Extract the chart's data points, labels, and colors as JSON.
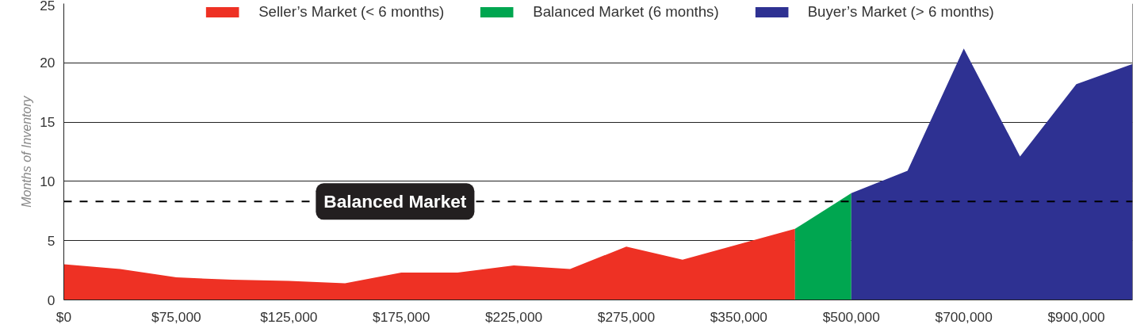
{
  "chart_data": {
    "type": "area",
    "ylabel": "Months of Inventory",
    "categories": [
      "$0",
      null,
      "$75,000",
      null,
      "$125,000",
      null,
      "$175,000",
      null,
      "$225,000",
      null,
      "$275,000",
      null,
      "$350,000",
      null,
      "$500,000",
      null,
      "$700,000",
      null,
      "$900,000",
      null
    ],
    "series": [
      {
        "name": "Seller’s Market (< 6 months)",
        "color": "#ee3124",
        "values": [
          3.0,
          2.6,
          1.9,
          1.7,
          1.6,
          1.4,
          2.3,
          2.3,
          2.9,
          2.6,
          4.5,
          3.4,
          4.7,
          6.0,
          null,
          null,
          null,
          null,
          null,
          null
        ]
      },
      {
        "name": "Balanced Market (6 months)",
        "color": "#00a650",
        "values": [
          null,
          null,
          null,
          null,
          null,
          null,
          null,
          null,
          null,
          null,
          null,
          null,
          null,
          6.0,
          9.0,
          null,
          null,
          null,
          null,
          null
        ]
      },
      {
        "name": "Buyer’s Market (> 6 months)",
        "color": "#2e3192",
        "values": [
          null,
          null,
          null,
          null,
          null,
          null,
          null,
          null,
          null,
          null,
          null,
          null,
          null,
          null,
          9.0,
          10.9,
          21.2,
          12.1,
          18.2,
          19.9
        ]
      }
    ],
    "ylim": [
      0,
      25
    ],
    "yticks": [
      0,
      5,
      10,
      15,
      20,
      25
    ],
    "grid": "y",
    "legend": "top",
    "ref_lines": [
      {
        "axis": "y",
        "value": 8.3,
        "label": "Balanced Market",
        "color": "#000000",
        "line_style": "dashed"
      }
    ]
  }
}
